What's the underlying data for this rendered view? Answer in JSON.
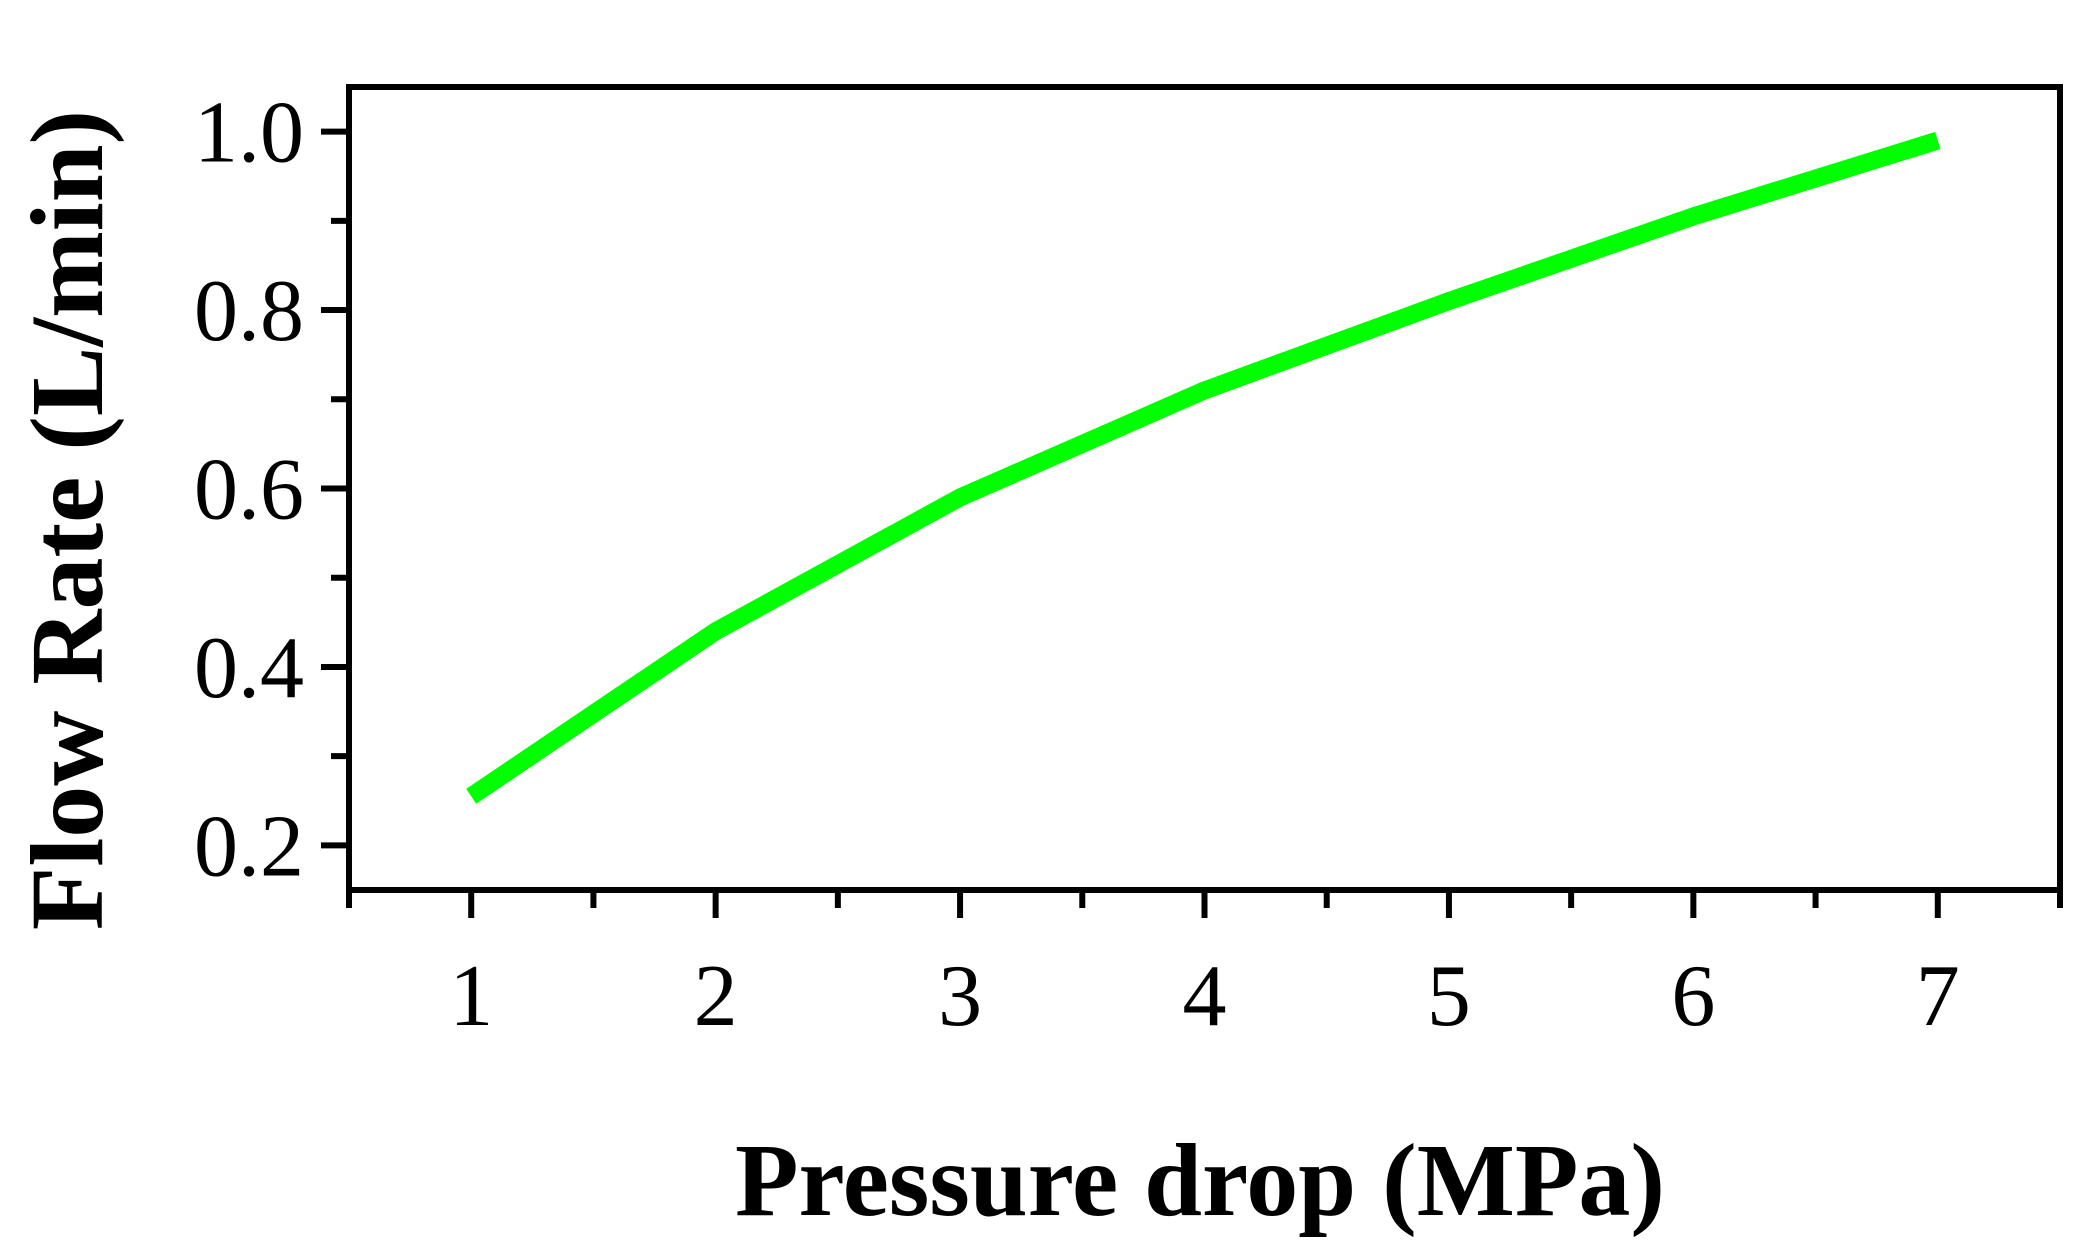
{
  "chart_data": {
    "type": "line",
    "title": "",
    "xlabel": "Pressure drop (MPa)",
    "ylabel": "Flow Rate (L/min)",
    "xlim": [
      0.5,
      7.5
    ],
    "ylim": [
      0.15,
      1.05
    ],
    "x_ticks": [
      1,
      2,
      3,
      4,
      5,
      6,
      7
    ],
    "x_tick_labels": [
      "1",
      "2",
      "3",
      "4",
      "5",
      "6",
      "7"
    ],
    "y_ticks": [
      0.2,
      0.4,
      0.6,
      0.8,
      1.0
    ],
    "y_tick_labels": [
      "0.2",
      "0.4",
      "0.6",
      "0.8",
      "1.0"
    ],
    "x_minor_ticks": [
      1.5,
      2.5,
      3.5,
      4.5,
      5.5,
      6.5
    ],
    "y_minor_ticks": [
      0.3,
      0.5,
      0.7,
      0.9
    ],
    "grid": false,
    "series": [
      {
        "color": "#00ff00",
        "x": [
          1,
          2,
          3,
          4,
          5,
          6,
          7
        ],
        "y": [
          0.255,
          0.44,
          0.59,
          0.71,
          0.81,
          0.905,
          0.99
        ]
      }
    ]
  }
}
